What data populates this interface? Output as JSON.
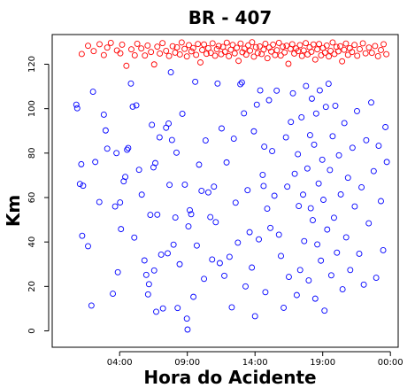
{
  "chart_data": {
    "type": "scatter",
    "title": "BR - 407",
    "xlabel": "Hora do Acidente",
    "ylabel": "Km",
    "xlim": [
      "00:00",
      "24:00"
    ],
    "ylim": [
      0,
      130
    ],
    "x_ticks": [
      "04:00",
      "09:00",
      "14:00",
      "19:00",
      "00:00"
    ],
    "y_ticks": [
      "0",
      "20",
      "40",
      "60",
      "80",
      "100",
      "120"
    ],
    "grid": false,
    "legend": "none",
    "series": [
      {
        "color": "#ff0000",
        "marker": "open-circle",
        "points": [
          [
            "01:12",
            124.6
          ],
          [
            "01:40",
            128.3
          ],
          [
            "02:05",
            125.9
          ],
          [
            "02:31",
            129.0
          ],
          [
            "02:50",
            124.1
          ],
          [
            "03:05",
            127.5
          ],
          [
            "03:21",
            129.6
          ],
          [
            "03:48",
            126.2
          ],
          [
            "04:03",
            124.9
          ],
          [
            "04:11",
            128.8
          ],
          [
            "04:30",
            119.3
          ],
          [
            "04:52",
            126.7
          ],
          [
            "05:07",
            124.0
          ],
          [
            "05:18",
            129.2
          ],
          [
            "05:36",
            127.1
          ],
          [
            "05:52",
            123.9
          ],
          [
            "06:04",
            128.4
          ],
          [
            "06:19",
            125.5
          ],
          [
            "06:33",
            119.9
          ],
          [
            "06:47",
            127.9
          ],
          [
            "06:58",
            124.8
          ],
          [
            "07:10",
            129.5
          ],
          [
            "07:26",
            126.0
          ],
          [
            "07:39",
            123.7
          ],
          [
            "07:55",
            128.1
          ],
          [
            "08:06",
            125.2
          ],
          [
            "08:14",
            127.6
          ],
          [
            "08:27",
            124.4
          ],
          [
            "08:35",
            129.8
          ],
          [
            "08:48",
            126.9
          ],
          [
            "08:58",
            123.5
          ],
          [
            "09:07",
            128.6
          ],
          [
            "09:18",
            125.8
          ],
          [
            "09:26",
            127.3
          ],
          [
            "09:39",
            124.2
          ],
          [
            "09:47",
            129.1
          ],
          [
            "09:58",
            120.8
          ],
          [
            "10:06",
            126.4
          ],
          [
            "10:14",
            128.9
          ],
          [
            "10:25",
            124.7
          ],
          [
            "10:33",
            127.2
          ],
          [
            "10:44",
            125.1
          ],
          [
            "10:52",
            129.4
          ],
          [
            "11:03",
            123.8
          ],
          [
            "11:11",
            126.8
          ],
          [
            "11:19",
            128.2
          ],
          [
            "11:30",
            124.5
          ],
          [
            "11:38",
            127.8
          ],
          [
            "11:47",
            125.6
          ],
          [
            "11:55",
            129.7
          ],
          [
            "12:04",
            123.6
          ],
          [
            "12:13",
            126.5
          ],
          [
            "12:21",
            128.7
          ],
          [
            "12:30",
            124.9
          ],
          [
            "12:39",
            127.4
          ],
          [
            "12:47",
            121.5
          ],
          [
            "12:56",
            129.3
          ],
          [
            "13:04",
            125.4
          ],
          [
            "13:13",
            127.0
          ],
          [
            "13:21",
            124.3
          ],
          [
            "13:30",
            128.5
          ],
          [
            "13:38",
            126.1
          ],
          [
            "13:47",
            129.9
          ],
          [
            "13:55",
            123.4
          ],
          [
            "14:04",
            127.7
          ],
          [
            "14:12",
            125.0
          ],
          [
            "14:21",
            128.0
          ],
          [
            "14:29",
            124.6
          ],
          [
            "14:38",
            126.6
          ],
          [
            "14:46",
            129.2
          ],
          [
            "14:55",
            122.7
          ],
          [
            "15:03",
            127.5
          ],
          [
            "15:12",
            125.7
          ],
          [
            "15:20",
            128.8
          ],
          [
            "15:29",
            124.1
          ],
          [
            "15:37",
            126.3
          ],
          [
            "15:46",
            129.6
          ],
          [
            "15:54",
            123.9
          ],
          [
            "16:03",
            127.9
          ],
          [
            "16:11",
            125.3
          ],
          [
            "16:20",
            128.3
          ],
          [
            "16:28",
            120.2
          ],
          [
            "16:37",
            126.9
          ],
          [
            "16:45",
            129.0
          ],
          [
            "16:54",
            124.8
          ],
          [
            "17:02",
            127.1
          ],
          [
            "17:11",
            125.9
          ],
          [
            "17:19",
            128.6
          ],
          [
            "17:28",
            123.7
          ],
          [
            "17:36",
            126.2
          ],
          [
            "17:45",
            129.5
          ],
          [
            "17:53",
            124.4
          ],
          [
            "18:02",
            127.6
          ],
          [
            "18:10",
            125.6
          ],
          [
            "18:19",
            128.9
          ],
          [
            "18:27",
            122.1
          ],
          [
            "18:36",
            126.7
          ],
          [
            "18:44",
            129.1
          ],
          [
            "18:53",
            124.0
          ],
          [
            "19:01",
            127.3
          ],
          [
            "19:10",
            125.2
          ],
          [
            "19:18",
            128.4
          ],
          [
            "19:27",
            123.5
          ],
          [
            "19:35",
            126.0
          ],
          [
            "19:44",
            129.8
          ],
          [
            "19:52",
            124.6
          ],
          [
            "20:01",
            127.8
          ],
          [
            "20:09",
            125.8
          ],
          [
            "20:18",
            128.1
          ],
          [
            "20:26",
            121.3
          ],
          [
            "20:35",
            126.5
          ],
          [
            "20:43",
            129.3
          ],
          [
            "20:52",
            124.2
          ],
          [
            "21:00",
            127.2
          ],
          [
            "21:10",
            125.5
          ],
          [
            "21:21",
            128.7
          ],
          [
            "21:33",
            123.8
          ],
          [
            "21:44",
            126.8
          ],
          [
            "21:58",
            129.4
          ],
          [
            "22:10",
            124.9
          ],
          [
            "22:25",
            127.5
          ],
          [
            "22:38",
            125.1
          ],
          [
            "22:52",
            128.2
          ],
          [
            "23:05",
            123.6
          ],
          [
            "23:18",
            126.4
          ],
          [
            "23:30",
            129.0
          ],
          [
            "23:42",
            124.5
          ]
        ]
      },
      {
        "color": "#0000ff",
        "marker": "open-circle",
        "points": [
          [
            "00:48",
            101.8
          ],
          [
            "00:52",
            100.2
          ],
          [
            "01:04",
            66.1
          ],
          [
            "01:10",
            75.0
          ],
          [
            "01:14",
            42.8
          ],
          [
            "01:18",
            65.3
          ],
          [
            "01:40",
            38.1
          ],
          [
            "01:55",
            11.4
          ],
          [
            "02:02",
            107.6
          ],
          [
            "02:12",
            76.0
          ],
          [
            "02:30",
            58.0
          ],
          [
            "02:50",
            97.3
          ],
          [
            "02:58",
            90.2
          ],
          [
            "03:05",
            82.0
          ],
          [
            "03:30",
            16.7
          ],
          [
            "03:40",
            56.0
          ],
          [
            "03:46",
            80.0
          ],
          [
            "03:52",
            26.4
          ],
          [
            "04:02",
            57.8
          ],
          [
            "04:06",
            45.8
          ],
          [
            "04:18",
            67.3
          ],
          [
            "04:25",
            69.3
          ],
          [
            "04:33",
            81.5
          ],
          [
            "04:38",
            82.3
          ],
          [
            "04:50",
            111.3
          ],
          [
            "04:58",
            100.9
          ],
          [
            "05:05",
            42.0
          ],
          [
            "05:14",
            101.5
          ],
          [
            "05:26",
            72.5
          ],
          [
            "05:38",
            61.3
          ],
          [
            "05:50",
            31.7
          ],
          [
            "05:58",
            25.2
          ],
          [
            "06:06",
            16.4
          ],
          [
            "06:10",
            21.0
          ],
          [
            "06:16",
            52.2
          ],
          [
            "06:23",
            92.7
          ],
          [
            "06:30",
            73.6
          ],
          [
            "06:33",
            27.2
          ],
          [
            "06:38",
            75.5
          ],
          [
            "06:42",
            8.6
          ],
          [
            "06:47",
            52.3
          ],
          [
            "06:57",
            87.1
          ],
          [
            "07:04",
            34.3
          ],
          [
            "07:12",
            10.1
          ],
          [
            "07:26",
            91.4
          ],
          [
            "07:33",
            34.9
          ],
          [
            "07:37",
            93.3
          ],
          [
            "07:41",
            65.7
          ],
          [
            "07:47",
            116.4
          ],
          [
            "07:52",
            85.9
          ],
          [
            "07:59",
            38.8
          ],
          [
            "08:07",
            51.0
          ],
          [
            "08:12",
            80.2
          ],
          [
            "08:17",
            10.3
          ],
          [
            "08:26",
            30.0
          ],
          [
            "08:38",
            97.7
          ],
          [
            "08:49",
            65.8
          ],
          [
            "08:58",
            5.5
          ],
          [
            "09:01",
            0.6
          ],
          [
            "09:05",
            47.0
          ],
          [
            "09:11",
            54.3
          ],
          [
            "09:17",
            52.5
          ],
          [
            "09:27",
            15.3
          ],
          [
            "09:35",
            112.1
          ],
          [
            "09:42",
            38.4
          ],
          [
            "09:52",
            74.8
          ],
          [
            "10:03",
            63.0
          ],
          [
            "10:14",
            23.4
          ],
          [
            "10:21",
            85.7
          ],
          [
            "10:33",
            62.3
          ],
          [
            "10:42",
            51.2
          ],
          [
            "10:50",
            32.1
          ],
          [
            "10:58",
            64.9
          ],
          [
            "11:06",
            48.9
          ],
          [
            "11:14",
            111.3
          ],
          [
            "11:24",
            30.5
          ],
          [
            "11:32",
            91.1
          ],
          [
            "11:44",
            24.8
          ],
          [
            "11:54",
            75.8
          ],
          [
            "12:07",
            33.3
          ],
          [
            "12:17",
            10.6
          ],
          [
            "12:26",
            86.5
          ],
          [
            "12:34",
            57.7
          ],
          [
            "12:44",
            39.7
          ],
          [
            "12:55",
            111.0
          ],
          [
            "13:02",
            111.8
          ],
          [
            "13:11",
            97.9
          ],
          [
            "13:18",
            20.0
          ],
          [
            "13:27",
            63.3
          ],
          [
            "13:36",
            44.4
          ],
          [
            "13:46",
            28.5
          ],
          [
            "13:55",
            89.8
          ],
          [
            "14:00",
            6.6
          ],
          [
            "14:08",
            101.8
          ],
          [
            "14:17",
            41.2
          ],
          [
            "14:23",
            108.2
          ],
          [
            "14:34",
            70.2
          ],
          [
            "14:38",
            65.2
          ],
          [
            "14:41",
            82.9
          ],
          [
            "14:46",
            17.4
          ],
          [
            "14:54",
            55.0
          ],
          [
            "15:02",
            103.8
          ],
          [
            "15:08",
            46.3
          ],
          [
            "15:16",
            80.9
          ],
          [
            "15:26",
            60.8
          ],
          [
            "15:36",
            108.1
          ],
          [
            "15:46",
            43.3
          ],
          [
            "15:55",
            33.7
          ],
          [
            "16:07",
            10.4
          ],
          [
            "16:17",
            87.1
          ],
          [
            "16:23",
            64.9
          ],
          [
            "16:30",
            24.3
          ],
          [
            "16:39",
            94.0
          ],
          [
            "16:48",
            106.9
          ],
          [
            "16:56",
            70.7
          ],
          [
            "17:05",
            16.1
          ],
          [
            "17:10",
            79.5
          ],
          [
            "17:14",
            56.2
          ],
          [
            "17:20",
            27.4
          ],
          [
            "17:26",
            96.1
          ],
          [
            "17:33",
            61.3
          ],
          [
            "17:38",
            40.4
          ],
          [
            "17:46",
            110.2
          ],
          [
            "17:52",
            73.1
          ],
          [
            "17:58",
            22.7
          ],
          [
            "18:04",
            88.1
          ],
          [
            "18:07",
            55.2
          ],
          [
            "18:12",
            104.5
          ],
          [
            "18:16",
            49.8
          ],
          [
            "18:22",
            83.8
          ],
          [
            "18:27",
            14.5
          ],
          [
            "18:31",
            97.8
          ],
          [
            "18:36",
            38.9
          ],
          [
            "18:42",
            66.3
          ],
          [
            "18:47",
            108.2
          ],
          [
            "18:52",
            31.6
          ],
          [
            "18:58",
            77.0
          ],
          [
            "19:03",
            59.0
          ],
          [
            "19:08",
            9.1
          ],
          [
            "19:14",
            100.8
          ],
          [
            "19:20",
            45.6
          ],
          [
            "19:26",
            111.2
          ],
          [
            "19:32",
            72.4
          ],
          [
            "19:38",
            25.0
          ],
          [
            "19:44",
            87.6
          ],
          [
            "19:50",
            50.9
          ],
          [
            "19:56",
            101.3
          ],
          [
            "20:03",
            35.2
          ],
          [
            "20:12",
            79.0
          ],
          [
            "20:20",
            61.4
          ],
          [
            "20:28",
            18.7
          ],
          [
            "20:36",
            93.5
          ],
          [
            "20:44",
            42.1
          ],
          [
            "20:52",
            68.9
          ],
          [
            "21:02",
            27.4
          ],
          [
            "21:12",
            82.4
          ],
          [
            "21:22",
            56.0
          ],
          [
            "21:32",
            98.9
          ],
          [
            "21:42",
            34.7
          ],
          [
            "21:52",
            64.6
          ],
          [
            "22:02",
            20.8
          ],
          [
            "22:13",
            85.8
          ],
          [
            "22:24",
            48.4
          ],
          [
            "22:35",
            102.8
          ],
          [
            "22:46",
            71.9
          ],
          [
            "22:57",
            23.9
          ],
          [
            "23:08",
            83.3
          ],
          [
            "23:18",
            58.4
          ],
          [
            "23:28",
            36.3
          ],
          [
            "23:38",
            91.7
          ],
          [
            "23:44",
            76.0
          ]
        ]
      }
    ]
  }
}
